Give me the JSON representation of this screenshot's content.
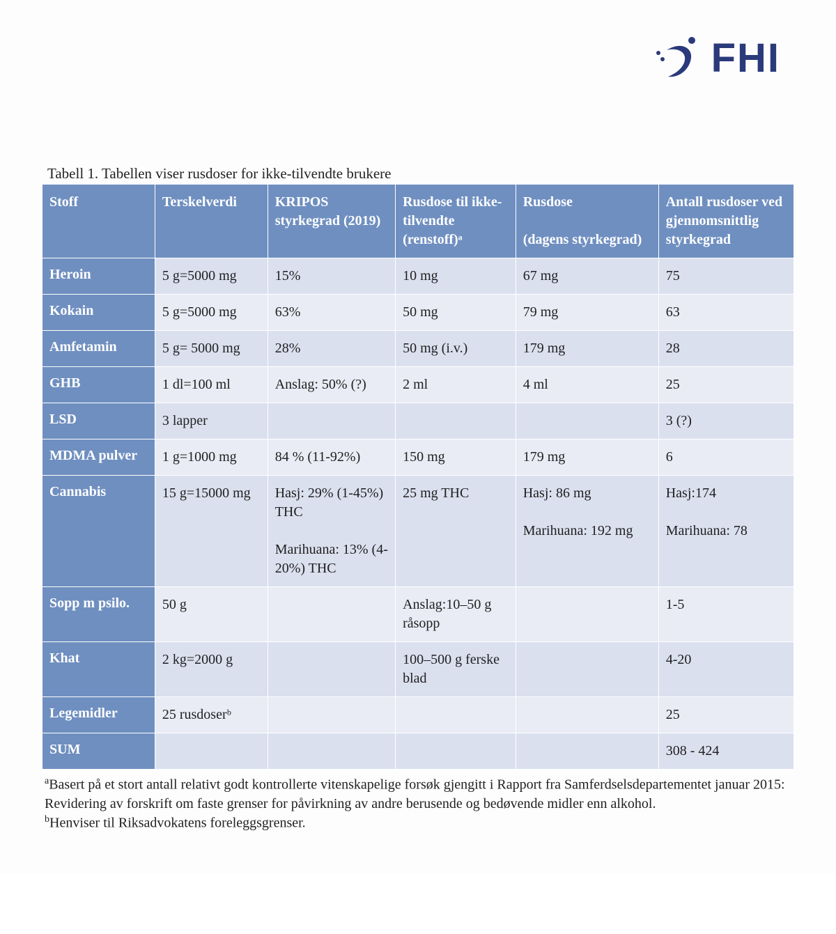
{
  "brand": {
    "name": "FHI",
    "color": "#2a3a7a"
  },
  "colors": {
    "header_bg": "#6f8fc0",
    "rowhead_bg": "#6f8fc0",
    "row_even_bg": "#dbe0ef",
    "row_odd_bg": "#e9ecf5",
    "text_on_blue": "#ffffff",
    "text": "#1f1f1f",
    "border": "#ffffff"
  },
  "table": {
    "caption": "Tabell 1. Tabellen viser rusdoser for ikke-tilvendte brukere",
    "caption_fontsize": 21,
    "cell_fontsize": 20,
    "column_widths_pct": [
      15,
      15,
      17,
      16,
      19,
      18
    ],
    "columns": [
      "Stoff",
      "Terskelverdi",
      "KRIPOS styrkegrad (2019)",
      "Rusdose til ikke-tilvendte (renstoff)ᵃ",
      "Rusdose\n\n(dagens styrkegrad)",
      "Antall rusdoser ved gjennomsnittlig styrkegrad"
    ],
    "rows": [
      {
        "name": "Heroin",
        "cells": [
          "5 g=5000 mg",
          "15%",
          "10 mg",
          "67 mg",
          "75"
        ]
      },
      {
        "name": "Kokain",
        "cells": [
          "5 g=5000 mg",
          "63%",
          "50 mg",
          "79 mg",
          "63"
        ]
      },
      {
        "name": "Amfetamin",
        "cells": [
          "5 g= 5000 mg",
          "28%",
          "50 mg (i.v.)",
          "179 mg",
          "28"
        ]
      },
      {
        "name": "GHB",
        "cells": [
          "1 dl=100 ml",
          "Anslag: 50% (?)",
          "2 ml",
          "4 ml",
          "25"
        ]
      },
      {
        "name": "LSD",
        "cells": [
          "3 lapper",
          "",
          "",
          "",
          "3 (?)"
        ]
      },
      {
        "name": "MDMA pulver",
        "cells": [
          "1 g=1000 mg",
          "84 % (11-92%)",
          "150 mg",
          "179 mg",
          "6"
        ]
      },
      {
        "name": "Cannabis",
        "cells": [
          "15 g=15000 mg",
          "Hasj: 29% (1-45%) THC\n\nMarihuana: 13% (4-20%) THC",
          "25 mg THC",
          "Hasj: 86 mg\n\nMarihuana: 192 mg",
          "Hasj:174\n\nMarihuana: 78"
        ]
      },
      {
        "name": "Sopp m psilo.",
        "cells": [
          "50 g",
          "",
          "Anslag:10–50 g råsopp",
          "",
          "1-5"
        ]
      },
      {
        "name": "Khat",
        "cells": [
          "2 kg=2000 g",
          "",
          "100–500 g ferske blad",
          "",
          "4-20"
        ]
      },
      {
        "name": "Legemidler",
        "cells": [
          "25 rusdoserᵇ",
          "",
          "",
          "",
          "25"
        ]
      },
      {
        "name": "SUM",
        "cells": [
          "",
          "",
          "",
          "",
          "308 - 424"
        ]
      }
    ]
  },
  "footnotes": {
    "a": "Basert på et stort antall relativt godt kontrollerte vitenskapelige forsøk gjengitt i Rapport fra Samferdselsdepartementet januar 2015: Revidering av forskrift om faste grenser for påvirkning av andre berusende og bedøvende midler enn alkohol.",
    "b": "Henviser til Riksadvokatens foreleggsgrenser."
  }
}
